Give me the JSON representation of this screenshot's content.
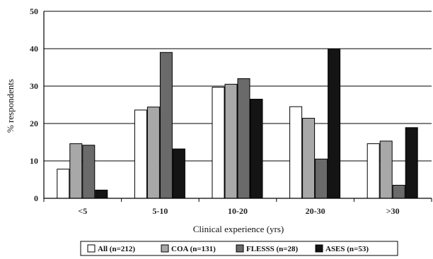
{
  "chart_data": {
    "type": "bar",
    "title": "",
    "xlabel": "Clinical experience (yrs)",
    "ylabel": "% respondents",
    "ylim": [
      0,
      50
    ],
    "yticks": [
      "0",
      "10",
      "20",
      "30",
      "40",
      "50"
    ],
    "categories": [
      "<5",
      "5-10",
      "10-20",
      "20-30",
      ">30"
    ],
    "grid": true,
    "legend_position": "bottom",
    "series": [
      {
        "name": "All (n=212)",
        "color": "#ffffff",
        "values": [
          7.8,
          23.6,
          29.7,
          24.5,
          14.6
        ]
      },
      {
        "name": "COA (n=131)",
        "color": "#a8a8a8",
        "values": [
          14.6,
          24.4,
          30.5,
          21.4,
          15.3
        ]
      },
      {
        "name": "FLESSS (n=28)",
        "color": "#6a6a6a",
        "values": [
          14.2,
          39.0,
          32.0,
          10.5,
          3.5
        ]
      },
      {
        "name": "ASES (n=53)",
        "color": "#141414",
        "values": [
          2.2,
          13.2,
          26.5,
          40.0,
          18.9
        ]
      }
    ]
  }
}
